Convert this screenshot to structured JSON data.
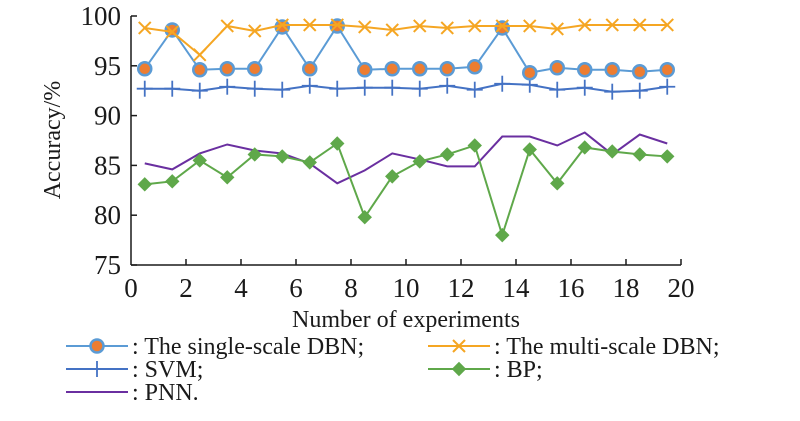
{
  "chart_data": {
    "type": "line",
    "title": "",
    "xlabel": "Number of experiments",
    "ylabel": "Accuracy/%",
    "xlim": [
      0,
      20
    ],
    "ylim": [
      75,
      100
    ],
    "xticks": [
      0,
      2,
      4,
      6,
      8,
      10,
      12,
      14,
      16,
      18,
      20
    ],
    "yticks": [
      75,
      80,
      85,
      90,
      95,
      100
    ],
    "xtick_labels": [
      "0",
      "2",
      "4",
      "6",
      "8",
      "10",
      "12",
      "14",
      "16",
      "18",
      "20"
    ],
    "ytick_labels": [
      "75",
      "80",
      "85",
      "90",
      "95",
      "100"
    ],
    "grid": false,
    "legend_position": "bottom",
    "x": [
      0.5,
      1.5,
      2.5,
      3.5,
      4.5,
      5.5,
      6.5,
      7.5,
      8.5,
      9.5,
      10.5,
      11.5,
      12.5,
      13.5,
      14.5,
      15.5,
      16.5,
      17.5,
      18.5,
      19.5
    ],
    "series": [
      {
        "name": "The single-scale DBN",
        "legend_label": ": The single-scale DBN;",
        "color": "#5b9bd5",
        "marker": "circle",
        "marker_fill": "#ed7d31",
        "values": [
          94.7,
          98.6,
          94.6,
          94.7,
          94.7,
          98.9,
          94.7,
          99.0,
          94.6,
          94.7,
          94.7,
          94.7,
          94.9,
          98.8,
          94.3,
          94.8,
          94.6,
          94.6,
          94.4,
          94.6
        ]
      },
      {
        "name": "The multi-scale DBN",
        "legend_label": ": The multi-scale DBN;",
        "color": "#f5a623",
        "marker": "x",
        "values": [
          98.8,
          98.4,
          96.1,
          99.0,
          98.5,
          99.1,
          99.1,
          99.1,
          98.9,
          98.6,
          99.0,
          98.8,
          99.0,
          99.0,
          99.0,
          98.7,
          99.1,
          99.1,
          99.1,
          99.1
        ]
      },
      {
        "name": "SVM",
        "legend_label": ": SVM;",
        "color": "#4472c4",
        "marker": "plus",
        "values": [
          92.7,
          92.7,
          92.5,
          92.9,
          92.7,
          92.6,
          93.0,
          92.7,
          92.8,
          92.8,
          92.7,
          93.0,
          92.6,
          93.2,
          93.1,
          92.6,
          92.8,
          92.4,
          92.5,
          92.9
        ]
      },
      {
        "name": "BP",
        "legend_label": ": BP;",
        "color": "#5fa84a",
        "marker": "diamond",
        "values": [
          83.1,
          83.4,
          85.5,
          83.8,
          86.1,
          85.9,
          85.3,
          87.2,
          79.8,
          83.9,
          85.4,
          86.1,
          87.0,
          78.0,
          86.6,
          83.2,
          86.8,
          86.4,
          86.1,
          85.9
        ]
      },
      {
        "name": "PNN",
        "legend_label": ": PNN.",
        "color": "#6a2fa0",
        "marker": "none",
        "values": [
          85.2,
          84.6,
          86.2,
          87.1,
          86.5,
          86.2,
          85.2,
          83.2,
          84.5,
          86.2,
          85.6,
          84.9,
          84.9,
          87.9,
          87.9,
          87.0,
          88.3,
          86.1,
          88.1,
          87.2
        ]
      }
    ]
  }
}
